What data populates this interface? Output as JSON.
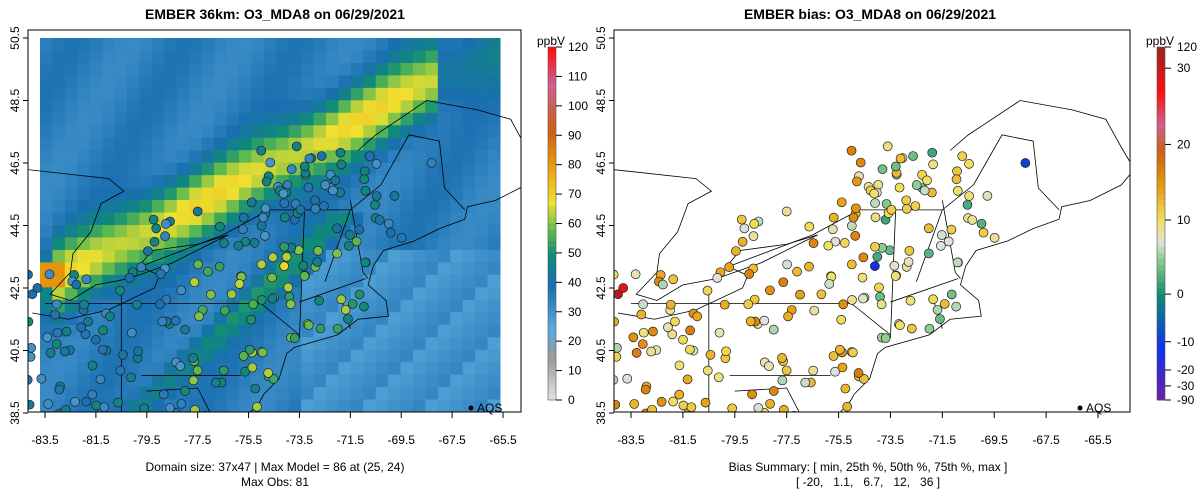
{
  "left": {
    "title": "EMBER 36km: O3_MDA8 on 06/29/2021",
    "footer_line1": "Domain size: 37x47 | Max Model = 86 at (25, 24)",
    "footer_line2": "Max Obs: 81",
    "colorbar_unit": "ppbV",
    "colorbar_ticks": [
      "0",
      "10",
      "20",
      "30",
      "40",
      "50",
      "60",
      "70",
      "80",
      "90",
      "100",
      "110",
      "120"
    ],
    "legend": "AQS"
  },
  "right": {
    "title": "EMBER bias: O3_MDA8 on 06/29/2021",
    "footer_line1": "Bias Summary: [ min, 25th %, 50th %, 75th %, max ]",
    "footer_line2": "[ -20,   1.1,   6.7,   12,   36 ]",
    "colorbar_unit": "ppbV",
    "colorbar_ticks": [
      "120",
      "30",
      "20",
      "10",
      "0",
      "-10",
      "-20",
      "-30",
      "-90"
    ],
    "legend": "AQS"
  },
  "axes": {
    "lat_ticks": [
      "50.5",
      "48.5",
      "46.5",
      "44.5",
      "42.5",
      "40.5",
      "38.5"
    ],
    "lon_ticks": [
      "-83.5",
      "-81.5",
      "-79.5",
      "-77.5",
      "-75.5",
      "-73.5",
      "-71.5",
      "-69.5",
      "-67.5",
      "-65.5"
    ]
  }
}
